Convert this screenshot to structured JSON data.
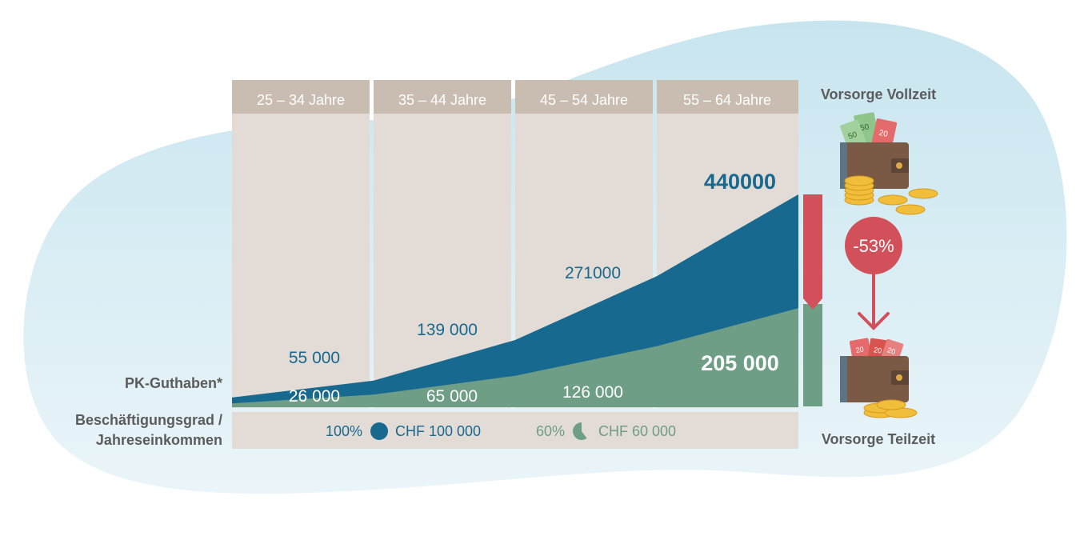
{
  "chart_data": {
    "type": "area",
    "categories": [
      "25 – 34 Jahre",
      "35 – 44 Jahre",
      "45 – 54 Jahre",
      "55 – 64 Jahre"
    ],
    "series": [
      {
        "values": [
          55000,
          139000,
          271000,
          440000
        ],
        "labels": [
          "55 000",
          "139 000",
          "271000",
          "440000"
        ],
        "color": "#17698f"
      },
      {
        "values": [
          26000,
          65000,
          126000,
          205000
        ],
        "labels": [
          "26 000",
          "65 000",
          "126 000",
          "205 000"
        ],
        "color": "#6f9e87"
      }
    ],
    "ylabel": "PK-Guthaben*",
    "ylim": [
      0,
      440000
    ],
    "grid": false
  },
  "row_label": "Beschäftigungsgrad / Jahreseinkommen",
  "row_label_lines": [
    "Beschäftigungsgrad /",
    "Jahreseinkommen"
  ],
  "legend": {
    "full": {
      "percent": "100%",
      "income": "CHF 100 000",
      "fraction": 1.0,
      "color": "#17698f"
    },
    "part": {
      "percent": "60%",
      "income": "CHF 60 000",
      "fraction": 0.6,
      "color": "#6f9e87"
    }
  },
  "side": {
    "top_title": "Vorsorge Vollzeit",
    "bottom_title": "Vorsorge Teilzeit",
    "reduction_badge": "-53%",
    "badge_color": "#d2505a",
    "banknote_labels": [
      "50",
      "50",
      "20",
      "20",
      "20",
      "20"
    ]
  },
  "colors": {
    "band": "#e3dbd5",
    "band_header": "#c9bcb1",
    "blob": "#d6ecf3"
  }
}
